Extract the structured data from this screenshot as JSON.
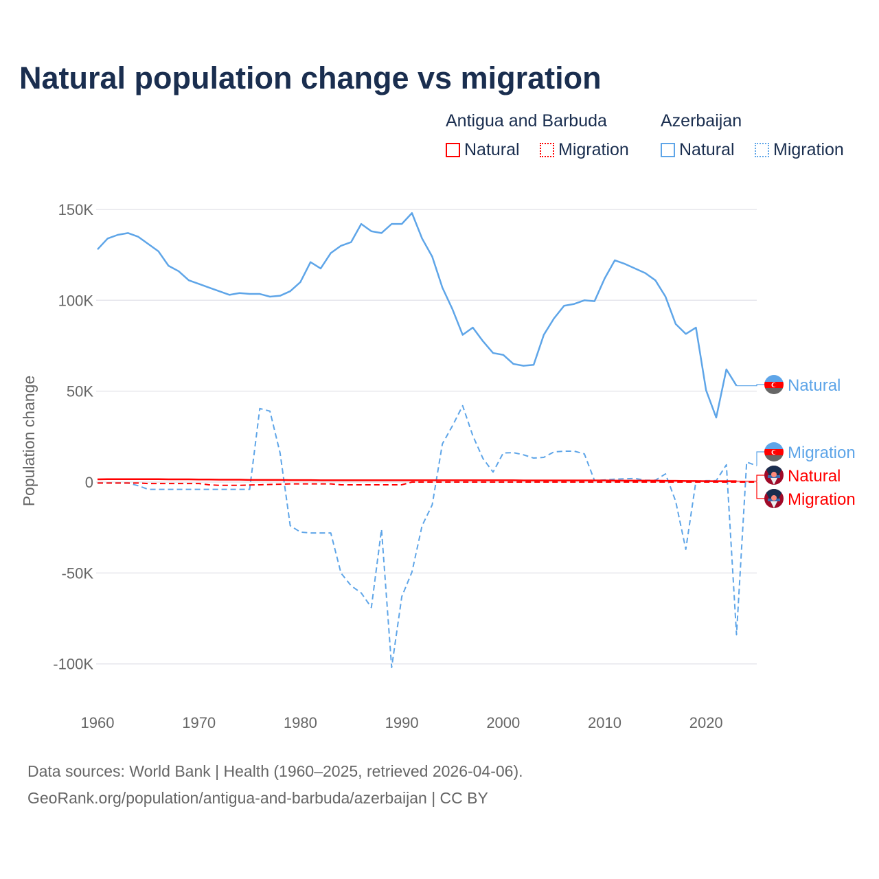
{
  "title": "Natural population change vs migration",
  "legend": {
    "groups": [
      {
        "name": "Antigua and Barbuda",
        "items": [
          {
            "label": "Natural",
            "style": "solid"
          },
          {
            "label": "Migration",
            "style": "dotted"
          }
        ],
        "color": "#ff0000"
      },
      {
        "name": "Azerbaijan",
        "items": [
          {
            "label": "Natural",
            "style": "solid"
          },
          {
            "label": "Migration",
            "style": "dotted"
          }
        ],
        "color": "#5ea5e8"
      }
    ]
  },
  "source": {
    "line1": "Data sources: World Bank | Health (1960–2025, retrieved 2026-04-06).",
    "line2": "GeoRank.org/population/antigua-and-barbuda/azerbaijan | CC BY"
  },
  "chart_data": {
    "type": "line",
    "title": "Natural population change vs migration",
    "xlabel": "",
    "ylabel": "Population change",
    "xlim": [
      1960,
      2025
    ],
    "ylim": [
      -100000,
      150000
    ],
    "x_ticks": [
      1960,
      1970,
      1980,
      1990,
      2000,
      2010,
      2020
    ],
    "y_ticks": [
      {
        "v": 150000,
        "label": "150K"
      },
      {
        "v": 100000,
        "label": "100K"
      },
      {
        "v": 50000,
        "label": "50K"
      },
      {
        "v": 0,
        "label": "0"
      },
      {
        "v": -50000,
        "label": "-50K"
      },
      {
        "v": -100000,
        "label": "-100K"
      }
    ],
    "grid": true,
    "series": [
      {
        "name": "Azerbaijan Natural",
        "end_label": "Natural",
        "color": "#5ea5e8",
        "dash": "solid",
        "start": 1960,
        "values": [
          128,
          134,
          136,
          137,
          135,
          131,
          127,
          119,
          116,
          111,
          109,
          107,
          105,
          103,
          104,
          103.5,
          103.5,
          102,
          102.5,
          105,
          110,
          121,
          117.5,
          126,
          130,
          132,
          142,
          138,
          137,
          142,
          142,
          148,
          134,
          124,
          107,
          95,
          81,
          85,
          77.5,
          71,
          70,
          65,
          64,
          64.5,
          81,
          90,
          97,
          98,
          100,
          99.5,
          112,
          122,
          120,
          117.5,
          115,
          111,
          102,
          87,
          81.5,
          85,
          50.5,
          35.5,
          62,
          53
        ]
      },
      {
        "name": "Azerbaijan Migration",
        "end_label": "Migration",
        "color": "#5ea5e8",
        "dash": "dashed",
        "start": 1960,
        "values": [
          -0.5,
          -0.5,
          -0.5,
          -0.5,
          -2,
          -4,
          -4,
          -4,
          -4,
          -4,
          -4,
          -4,
          -4,
          -4,
          -4,
          -4,
          40.5,
          39,
          16,
          -24,
          -27.5,
          -28,
          -28,
          -28,
          -50,
          -57,
          -61,
          -69,
          -26,
          -102,
          -63,
          -49.5,
          -24,
          -12.5,
          21,
          31,
          42,
          25.5,
          13,
          5.5,
          16,
          16.2,
          15,
          13.2,
          13.6,
          16.6,
          17,
          17,
          15.5,
          0.8,
          1.2,
          1.6,
          1.8,
          2,
          1,
          1,
          4.5,
          -10.5,
          -37,
          0.5,
          0.8,
          0.8,
          9.5,
          -84,
          11,
          9
        ]
      },
      {
        "name": "Antigua and Barbuda Natural",
        "end_label": "Natural",
        "color": "#ff0000",
        "dash": "solid",
        "start": 1960,
        "values": [
          1.5,
          1.6,
          1.6,
          1.6,
          1.6,
          1.6,
          1.6,
          1.5,
          1.5,
          1.5,
          1.4,
          1.4,
          1.3,
          1.3,
          1.3,
          1.2,
          1.2,
          1.2,
          1.2,
          1.1,
          1.1,
          1.1,
          1.0,
          1.0,
          1.0,
          1.0,
          1.0,
          1.0,
          1.0,
          1.0,
          1.0,
          1.0,
          1.0,
          1.0,
          1.0,
          1.0,
          1.0,
          1.0,
          1.0,
          1.0,
          1.0,
          1.0,
          0.9,
          0.9,
          0.9,
          0.9,
          0.9,
          0.9,
          0.9,
          0.9,
          0.9,
          0.8,
          0.8,
          0.8,
          0.8,
          0.8,
          0.7,
          0.7,
          0.6,
          0.6,
          0.5,
          0.5,
          0.5,
          0.5
        ]
      },
      {
        "name": "Antigua and Barbuda Migration",
        "end_label": "Migration",
        "color": "#ff0000",
        "dash": "dashed",
        "start": 1960,
        "values": [
          -0.5,
          -0.5,
          -0.5,
          -0.5,
          -0.5,
          -0.8,
          -0.8,
          -0.8,
          -0.8,
          -0.8,
          -0.8,
          -1.5,
          -1.8,
          -1.8,
          -1.8,
          -1.6,
          -1.5,
          -1.3,
          -1.2,
          -1.0,
          -1.0,
          -1.0,
          -1.0,
          -1.0,
          -1.5,
          -1.5,
          -1.5,
          -1.5,
          -1.5,
          -1.5,
          -1.5,
          0,
          0,
          0,
          0,
          0,
          0,
          0,
          0,
          0,
          0,
          0,
          0,
          0,
          0,
          0,
          0,
          0,
          0,
          0,
          0,
          0,
          0,
          0,
          0,
          0,
          0,
          0,
          0,
          0,
          0,
          0,
          0,
          0,
          0,
          0
        ]
      }
    ]
  }
}
